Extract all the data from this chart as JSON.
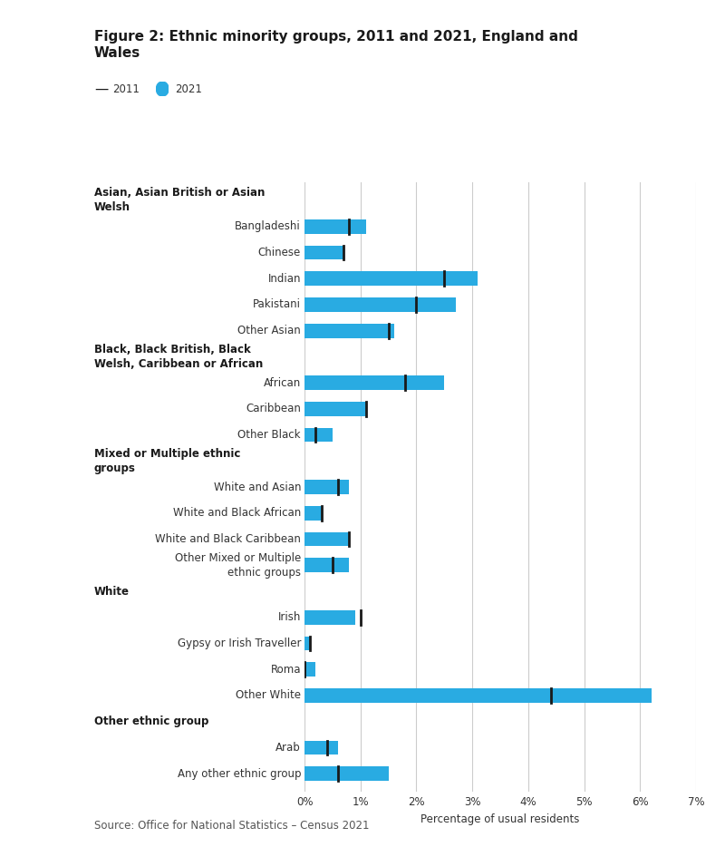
{
  "title_line1": "Figure 2: Ethnic minority groups, 2011 and 2021, England and",
  "title_line2": "Wales",
  "source": "Source: Office for National Statistics – Census 2021",
  "xlabel": "Percentage of usual residents",
  "xlim": [
    0,
    7
  ],
  "xticks": [
    0,
    1,
    2,
    3,
    4,
    5,
    6,
    7
  ],
  "xtick_labels": [
    "0%",
    "1%",
    "2%",
    "3%",
    "4%",
    "5%",
    "6%",
    "7%"
  ],
  "bar_color": "#29ABE2",
  "line_color": "#1a1a1a",
  "background_color": "#ffffff",
  "groups": [
    {
      "header": "Asian, Asian British or Asian\nWelsh",
      "items": [
        {
          "label": "Bangladeshi",
          "val2021": 1.1,
          "val2011": 0.8
        },
        {
          "label": "Chinese",
          "val2021": 0.7,
          "val2011": 0.7
        },
        {
          "label": "Indian",
          "val2021": 3.1,
          "val2011": 2.5
        },
        {
          "label": "Pakistani",
          "val2021": 2.7,
          "val2011": 2.0
        },
        {
          "label": "Other Asian",
          "val2021": 1.6,
          "val2011": 1.5
        }
      ]
    },
    {
      "header": "Black, Black British, Black\nWelsh, Caribbean or African",
      "items": [
        {
          "label": "African",
          "val2021": 2.5,
          "val2011": 1.8
        },
        {
          "label": "Caribbean",
          "val2021": 1.1,
          "val2011": 1.1
        },
        {
          "label": "Other Black",
          "val2021": 0.5,
          "val2011": 0.2
        }
      ]
    },
    {
      "header": "Mixed or Multiple ethnic\ngroups",
      "items": [
        {
          "label": "White and Asian",
          "val2021": 0.8,
          "val2011": 0.6
        },
        {
          "label": "White and Black African",
          "val2021": 0.3,
          "val2011": 0.3
        },
        {
          "label": "White and Black Caribbean",
          "val2021": 0.8,
          "val2011": 0.8
        },
        {
          "label": "Other Mixed or Multiple\nethnic groups",
          "val2021": 0.8,
          "val2011": 0.5
        }
      ]
    },
    {
      "header": "White",
      "items": [
        {
          "label": "Irish",
          "val2021": 0.9,
          "val2011": 1.0
        },
        {
          "label": "Gypsy or Irish Traveller",
          "val2021": 0.1,
          "val2011": 0.1
        },
        {
          "label": "Roma",
          "val2021": 0.2,
          "val2011": 0.0
        },
        {
          "label": "Other White",
          "val2021": 6.2,
          "val2011": 4.4
        }
      ]
    },
    {
      "header": "Other ethnic group",
      "items": [
        {
          "label": "Arab",
          "val2021": 0.6,
          "val2011": 0.4
        },
        {
          "label": "Any other ethnic group",
          "val2021": 1.5,
          "val2011": 0.6
        }
      ]
    }
  ]
}
